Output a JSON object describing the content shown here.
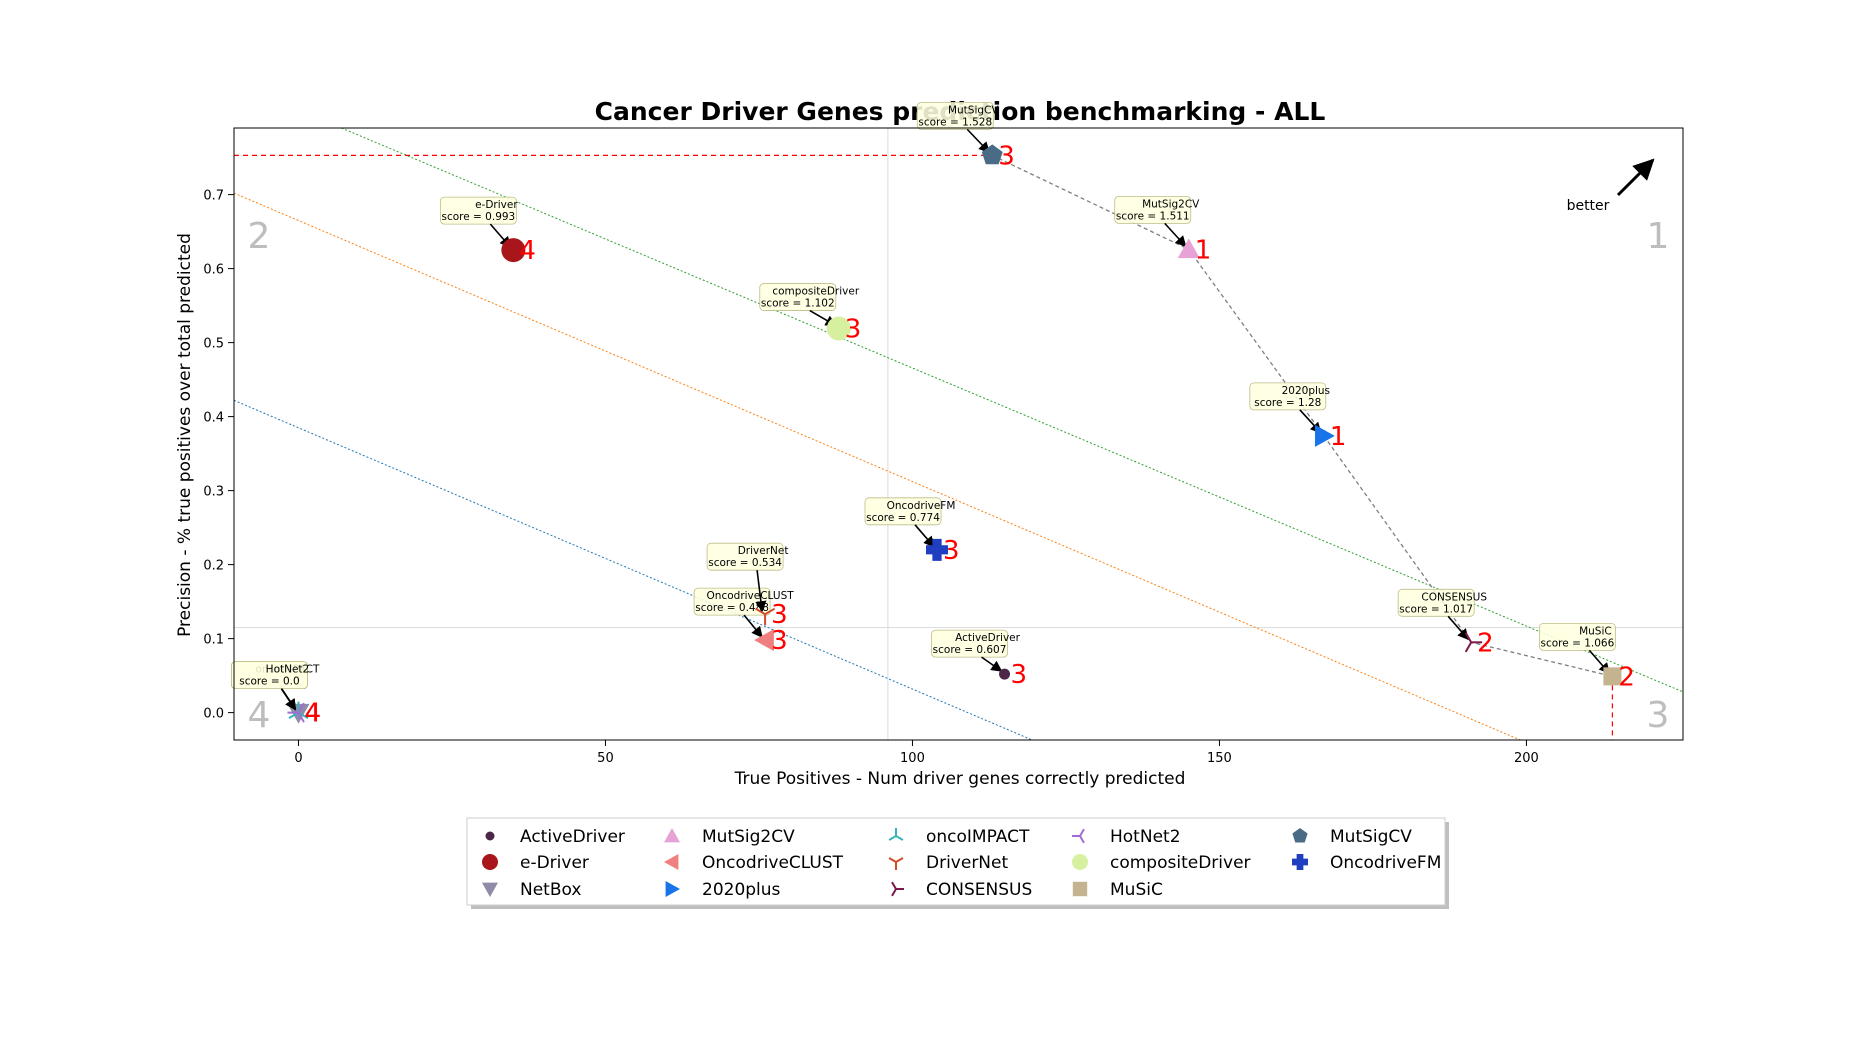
{
  "chart_data": {
    "type": "scatter",
    "title": "Cancer Driver Genes prediction benchmarking - ALL",
    "xlabel": "True Positives - Num driver genes correctly predicted",
    "ylabel": "Precision - % true positives over total predicted",
    "xlim": [
      -10.5,
      225.5
    ],
    "ylim": [
      -0.037,
      0.79
    ],
    "xticks": [
      0,
      50,
      100,
      150,
      200
    ],
    "yticks": [
      0.0,
      0.1,
      0.2,
      0.3,
      0.4,
      0.5,
      0.6,
      0.7
    ],
    "grid": false,
    "legend_position": "bottom",
    "better_label": "better",
    "quadrant_labels": [
      "1",
      "2",
      "3",
      "4"
    ],
    "mean_x": 96,
    "mean_y": 0.115,
    "best_precision_y": 0.753,
    "best_tp_x": 214,
    "diagonals": [
      {
        "color": "#2ca02c",
        "points": [
          [
            7,
            0.79
          ],
          [
            225.5,
            0.028
          ]
        ]
      },
      {
        "color": "#ff7f0e",
        "points": [
          [
            -10.5,
            0.702
          ],
          [
            199,
            -0.037
          ]
        ]
      },
      {
        "color": "#1f77b4",
        "points": [
          [
            -10.5,
            0.422
          ],
          [
            119.5,
            -0.037
          ]
        ]
      }
    ],
    "pareto_front": [
      [
        113,
        0.753
      ],
      [
        145,
        0.626
      ],
      [
        167,
        0.374
      ],
      [
        191,
        0.095
      ],
      [
        214,
        0.049
      ]
    ],
    "series": [
      {
        "name": "ActiveDriver",
        "x": 115,
        "y": 0.052,
        "rank": "3",
        "score_label": "score = 0.607",
        "color": "#4d2747",
        "marker": "circle-small"
      },
      {
        "name": "e-Driver",
        "x": 35,
        "y": 0.625,
        "rank": "4",
        "score_label": "score = 0.993",
        "color": "#a8161c",
        "marker": "circle-large"
      },
      {
        "name": "NetBox",
        "x": 0,
        "y": 0.0,
        "rank": "4",
        "score_label": "score = 0.0",
        "color": "#8f8ba8",
        "marker": "triangle-down"
      },
      {
        "name": "MutSig2CV",
        "x": 145,
        "y": 0.626,
        "rank": "1",
        "score_label": "score = 1.511",
        "color": "#e8a3d6",
        "marker": "triangle-up"
      },
      {
        "name": "OncodriveCLUST",
        "x": 76,
        "y": 0.098,
        "rank": "3",
        "score_label": "score = 0.488",
        "color": "#f08080",
        "marker": "triangle-left"
      },
      {
        "name": "2020plus",
        "x": 167,
        "y": 0.374,
        "rank": "1",
        "score_label": "score = 1.28",
        "color": "#1874e8",
        "marker": "triangle-right"
      },
      {
        "name": "oncoIMPACT",
        "x": 0,
        "y": 0.0,
        "rank": "4",
        "score_label": "score = 0.0",
        "color": "#3ab3b8",
        "marker": "tri-down"
      },
      {
        "name": "DriverNet",
        "x": 76,
        "y": 0.133,
        "rank": "3",
        "score_label": "score = 0.534",
        "color": "#d24a2a",
        "marker": "tri-up"
      },
      {
        "name": "CONSENSUS",
        "x": 191,
        "y": 0.095,
        "rank": "2",
        "score_label": "score = 1.017",
        "color": "#7a1a4a",
        "marker": "tri-left"
      },
      {
        "name": "HotNet2",
        "x": 0,
        "y": 0.0,
        "rank": "4",
        "score_label": "score = 0.0",
        "color": "#a36bd6",
        "marker": "tri-right"
      },
      {
        "name": "compositeDriver",
        "x": 88,
        "y": 0.519,
        "rank": "3",
        "score_label": "score = 1.102",
        "color": "#d6f0a0",
        "marker": "circle-large"
      },
      {
        "name": "MuSiC",
        "x": 214,
        "y": 0.049,
        "rank": "2",
        "score_label": "score = 1.066",
        "color": "#c4b38f",
        "marker": "square"
      },
      {
        "name": "MutSigCV",
        "x": 113,
        "y": 0.753,
        "rank": "3",
        "score_label": "score = 1.528",
        "color": "#4a6b85",
        "marker": "pentagon"
      },
      {
        "name": "OncodriveFM",
        "x": 104,
        "y": 0.22,
        "rank": "3",
        "score_label": "score = 0.774",
        "color": "#1f3ec0",
        "marker": "plus"
      }
    ]
  }
}
